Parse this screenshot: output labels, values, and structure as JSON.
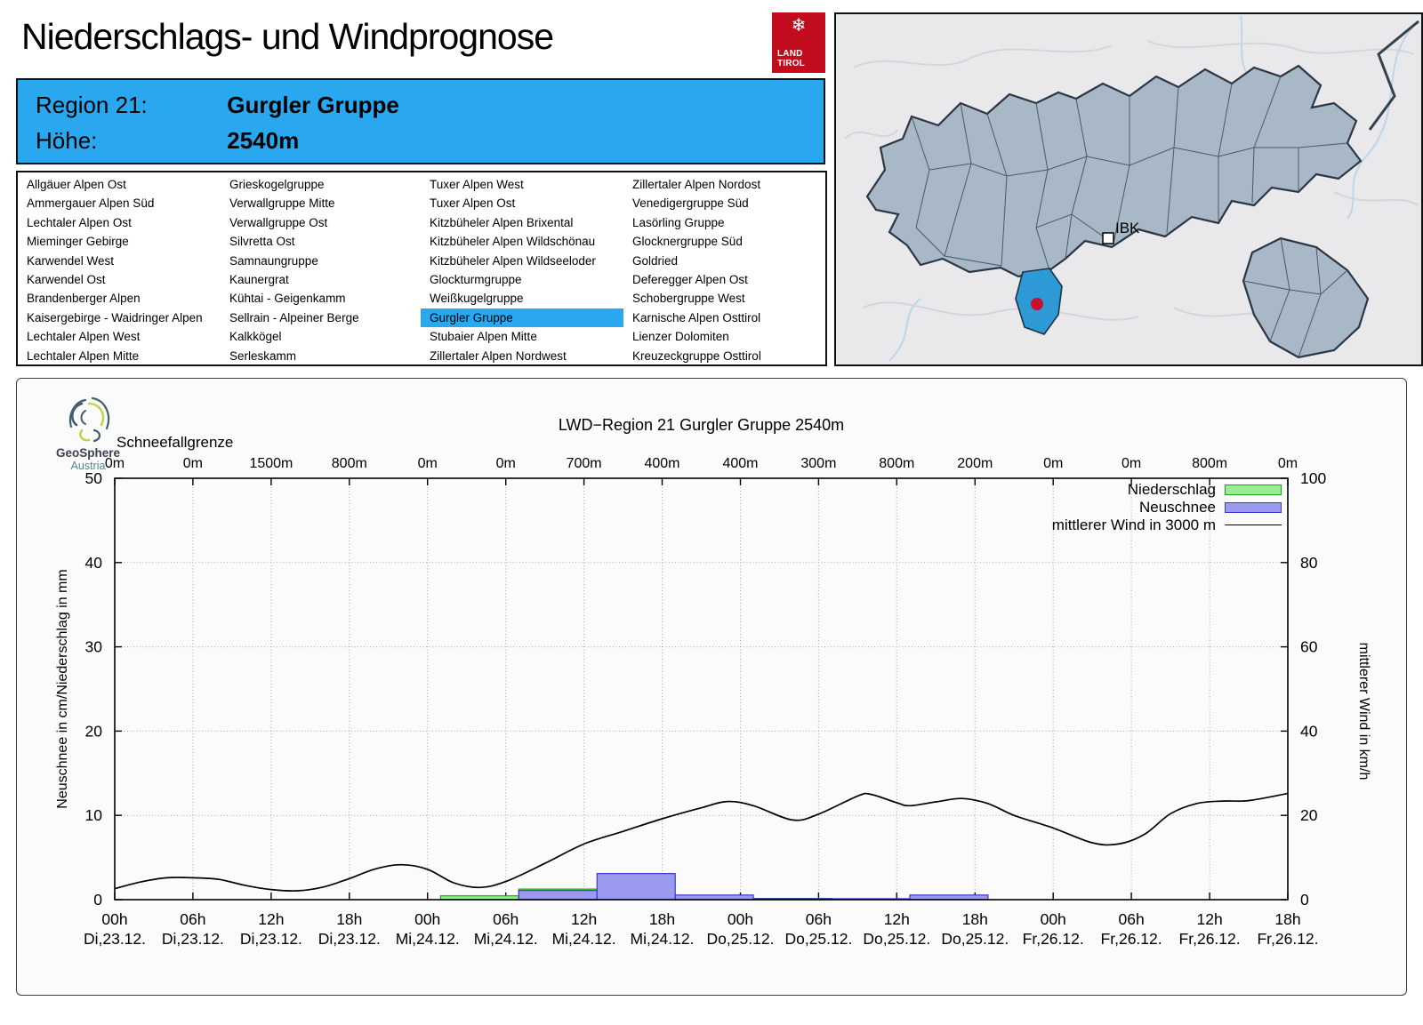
{
  "header": {
    "title": "Niederschlags- und Windprognose",
    "logo": {
      "line1": "LAND",
      "line2": "TIROL",
      "color": "#c30b1e"
    }
  },
  "info_box": {
    "region_label": "Region 21:",
    "region_value": "Gurgler Gruppe",
    "altitude_label": "Höhe:",
    "altitude_value": "2540m",
    "background": "#29a8f0"
  },
  "region_list": {
    "selected": "Gurgler Gruppe",
    "selected_color": "#29a8f0",
    "columns": [
      [
        "Allgäuer Alpen Ost",
        "Ammergauer Alpen Süd",
        "Lechtaler Alpen Ost",
        "Mieminger Gebirge",
        "Karwendel West",
        "Karwendel Ost",
        "Brandenberger Alpen",
        "Kaisergebirge - Waidringer Alpen",
        "Lechtaler Alpen West",
        "Lechtaler Alpen Mitte"
      ],
      [
        "Grieskogelgruppe",
        "Verwallgruppe Mitte",
        "Verwallgruppe Ost",
        "Silvretta Ost",
        "Samnaungruppe",
        "Kaunergrat",
        "Kühtai - Geigenkamm",
        "Sellrain - Alpeiner Berge",
        "Kalkkögel",
        "Serleskamm"
      ],
      [
        "Tuxer Alpen West",
        "Tuxer Alpen Ost",
        "Kitzbüheler Alpen Brixental",
        "Kitzbüheler Alpen Wildschönau",
        "Kitzbüheler Alpen Wildseeloder",
        "Glockturmgruppe",
        "Weißkugelgruppe",
        "Gurgler Gruppe",
        "Stubaier Alpen Mitte",
        "Zillertaler Alpen Nordwest"
      ],
      [
        "Zillertaler Alpen Nordost",
        "Venedigergruppe Süd",
        "Lasörling Gruppe",
        "Glocknergruppe Süd",
        "Goldried",
        "Deferegger Alpen Ost",
        "Schobergruppe West",
        "Karnische Alpen Osttirol",
        "Lienzer Dolomiten",
        "Kreuzeckgruppe Osttirol"
      ]
    ]
  },
  "map": {
    "city_label": "IBK",
    "background": "#e9e9ec",
    "region_fill": "#a9b8c7",
    "region_stroke": "#2e3b4e",
    "highlight_color": "#2d9ad6",
    "marker_color": "#c8102e"
  },
  "chart": {
    "title": "LWD−Region 21 Gurgler Gruppe 2540m",
    "snowline_label": "Schneefallgrenze",
    "snowline_values": [
      "0m",
      "0m",
      "1500m",
      "800m",
      "0m",
      "0m",
      "700m",
      "400m",
      "400m",
      "300m",
      "800m",
      "200m",
      "0m",
      "0m",
      "800m",
      "0m"
    ],
    "y_left": {
      "title": "Neuschnee in cm/Niederschlag in mm",
      "ticks": [
        0,
        10,
        20,
        30,
        40,
        50
      ]
    },
    "y_right": {
      "title": "mittlerer Wind in km/h",
      "ticks": [
        0,
        20,
        40,
        60,
        80,
        100
      ]
    },
    "x_ticks": {
      "times": [
        "00h",
        "06h",
        "12h",
        "18h",
        "00h",
        "06h",
        "12h",
        "18h",
        "00h",
        "06h",
        "12h",
        "18h",
        "00h",
        "06h",
        "12h",
        "18h"
      ],
      "dates": [
        "Di,23.12.",
        "Di,23.12.",
        "Di,23.12.",
        "Di,23.12.",
        "Mi,24.12.",
        "Mi,24.12.",
        "Mi,24.12.",
        "Mi,24.12.",
        "Do,25.12.",
        "Do,25.12.",
        "Do,25.12.",
        "Do,25.12.",
        "Fr,26.12.",
        "Fr,26.12.",
        "Fr,26.12.",
        "Fr,26.12."
      ]
    },
    "legend": [
      {
        "label": "Niederschlag",
        "type": "box",
        "fill": "#98ee90",
        "stroke": "#1fa11f"
      },
      {
        "label": "Neuschnee",
        "type": "box",
        "fill": "#9a9aee",
        "stroke": "#3a3acc"
      },
      {
        "label": "mittlerer Wind in 3000 m",
        "type": "line",
        "stroke": "#000000"
      }
    ],
    "logo": {
      "name": "GeoSphere",
      "sub": "Austria"
    }
  },
  "chart_data": {
    "type": "mixed",
    "title": "LWD−Region 21 Gurgler Gruppe 2540m",
    "x_unit": "hours since Di,23.12. 00h",
    "hours_total": 90,
    "ylim_left": [
      0,
      50
    ],
    "ylim_right": [
      0,
      100
    ],
    "grid": true,
    "legend_position": "top-right",
    "snowline_m": [
      0,
      0,
      1500,
      800,
      0,
      0,
      700,
      400,
      400,
      300,
      800,
      200,
      0,
      0,
      800,
      0
    ],
    "series": [
      {
        "name": "Niederschlag",
        "type": "bar",
        "unit": "mm",
        "axis": "left",
        "segments": [
          {
            "from": 25,
            "to": 31,
            "value": 0.45
          },
          {
            "from": 31,
            "to": 37,
            "value": 1.25
          },
          {
            "from": 43,
            "to": 55,
            "value": 0.15
          }
        ]
      },
      {
        "name": "Neuschnee",
        "type": "bar",
        "unit": "cm",
        "axis": "left",
        "segments": [
          {
            "from": 31,
            "to": 37,
            "value": 1.1
          },
          {
            "from": 37,
            "to": 43,
            "value": 3.1
          },
          {
            "from": 43,
            "to": 49,
            "value": 0.55
          },
          {
            "from": 49,
            "to": 61,
            "value": 0.12
          },
          {
            "from": 61,
            "to": 67,
            "value": 0.55
          }
        ]
      },
      {
        "name": "mittlerer Wind in 3000 m",
        "type": "line",
        "unit": "km/h",
        "axis": "right",
        "points": [
          [
            0,
            2.6
          ],
          [
            2,
            4.2
          ],
          [
            4,
            5.2
          ],
          [
            6,
            5.2
          ],
          [
            8,
            4.8
          ],
          [
            10,
            3.4
          ],
          [
            12,
            2.4
          ],
          [
            14,
            2.1
          ],
          [
            16,
            3.0
          ],
          [
            18,
            5.0
          ],
          [
            20,
            7.3
          ],
          [
            22,
            8.3
          ],
          [
            24,
            7.2
          ],
          [
            26,
            4.0
          ],
          [
            28,
            2.9
          ],
          [
            30,
            4.3
          ],
          [
            33,
            8.6
          ],
          [
            36,
            13.2
          ],
          [
            39,
            16.2
          ],
          [
            42,
            19.2
          ],
          [
            45,
            21.8
          ],
          [
            47,
            23.3
          ],
          [
            49,
            22.3
          ],
          [
            52,
            18.9
          ],
          [
            54,
            20.3
          ],
          [
            57,
            24.6
          ],
          [
            58,
            25.0
          ],
          [
            60,
            23.0
          ],
          [
            61,
            22.3
          ],
          [
            63,
            23.2
          ],
          [
            65,
            24.0
          ],
          [
            67,
            22.8
          ],
          [
            69,
            20.0
          ],
          [
            72,
            17.0
          ],
          [
            75,
            13.5
          ],
          [
            77,
            13.2
          ],
          [
            79,
            15.5
          ],
          [
            81,
            20.4
          ],
          [
            83,
            22.8
          ],
          [
            85,
            23.4
          ],
          [
            87,
            23.5
          ],
          [
            90,
            25.2
          ]
        ]
      }
    ]
  }
}
